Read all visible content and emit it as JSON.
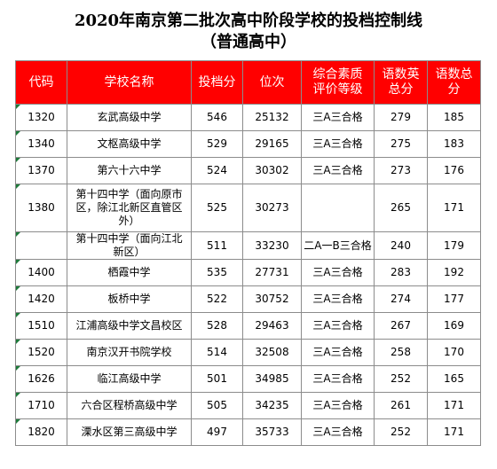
{
  "title": "2020年南京第二批次高中阶段学校的投档控制线",
  "subtitle": "（普通高中）",
  "headers": [
    "代码",
    "学校名称",
    "投档分",
    "位次",
    "综合素质评价等级",
    "语数英总分",
    "语数总分"
  ],
  "rows": [
    {
      "code": "1320",
      "school": "玄武高级中学",
      "score": "546",
      "rank": "25132",
      "grade": "三A三合格",
      "cme": "279",
      "cm": "185"
    },
    {
      "code": "1340",
      "school": "文枢高级中学",
      "score": "529",
      "rank": "29165",
      "grade": "三A三合格",
      "cme": "275",
      "cm": "183"
    },
    {
      "code": "1370",
      "school": "第六十六中学",
      "score": "524",
      "rank": "30302",
      "grade": "三A三合格",
      "cme": "273",
      "cm": "176"
    },
    {
      "code": "1380",
      "school": "第十四中学（面向原市区，除江北新区直管区外）",
      "score": "525",
      "rank": "30273",
      "grade": "",
      "cme": "265",
      "cm": "171"
    },
    {
      "code": "",
      "school": "第十四中学（面向江北新区）",
      "score": "511",
      "rank": "33230",
      "grade": "二A一B三合格",
      "cme": "240",
      "cm": "179"
    },
    {
      "code": "1400",
      "school": "栖霞中学",
      "score": "535",
      "rank": "27731",
      "grade": "三A三合格",
      "cme": "283",
      "cm": "192"
    },
    {
      "code": "1420",
      "school": "板桥中学",
      "score": "522",
      "rank": "30752",
      "grade": "三A三合格",
      "cme": "274",
      "cm": "177"
    },
    {
      "code": "1510",
      "school": "江浦高级中学文昌校区",
      "score": "528",
      "rank": "29463",
      "grade": "三A三合格",
      "cme": "267",
      "cm": "169"
    },
    {
      "code": "1520",
      "school": "南京汉开书院学校",
      "score": "514",
      "rank": "32508",
      "grade": "三A三合格",
      "cme": "258",
      "cm": "170"
    },
    {
      "code": "1626",
      "school": "临江高级中学",
      "score": "501",
      "rank": "34985",
      "grade": "三A三合格",
      "cme": "252",
      "cm": "165"
    },
    {
      "code": "1710",
      "school": "六合区程桥高级中学",
      "score": "505",
      "rank": "34235",
      "grade": "三A三合格",
      "cme": "261",
      "cm": "171"
    },
    {
      "code": "1820",
      "school": "溧水区第三高级中学",
      "score": "497",
      "rank": "35733",
      "grade": "三A三合格",
      "cme": "252",
      "cm": "171"
    }
  ]
}
